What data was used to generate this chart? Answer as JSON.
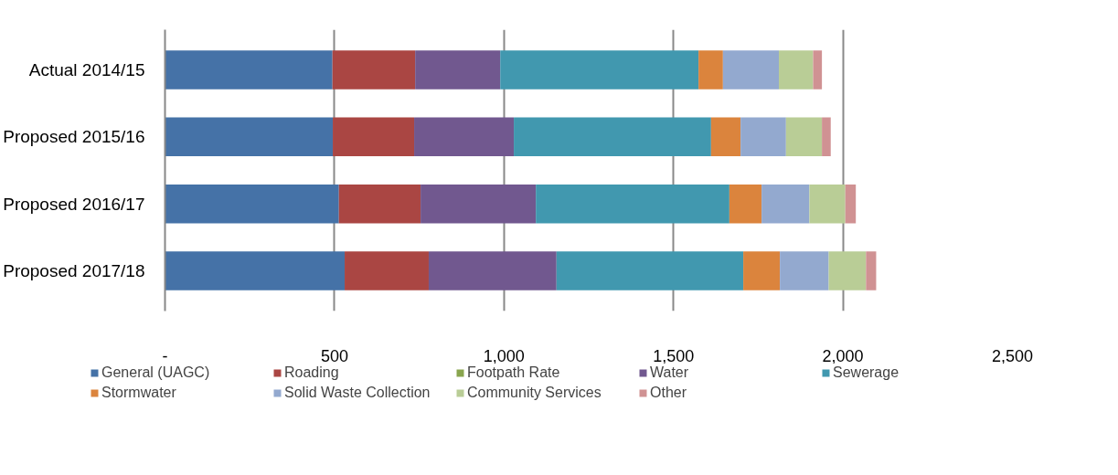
{
  "chart_data": {
    "type": "bar",
    "orientation": "horizontal",
    "stacked": true,
    "categories": [
      "Actual 2014/15",
      "Proposed 2015/16",
      "Proposed 2016/17",
      "Proposed 2017/18"
    ],
    "series": [
      {
        "name": "General (UAGC)",
        "color": "#4572a7",
        "values": [
          494,
          495,
          513,
          530
        ]
      },
      {
        "name": "Roading",
        "color": "#aa4643",
        "values": [
          244,
          240,
          241,
          248
        ]
      },
      {
        "name": "Footpath Rate",
        "color": "#89a54e",
        "values": [
          0,
          0,
          0,
          0
        ]
      },
      {
        "name": "Water",
        "color": "#71588f",
        "values": [
          251,
          294,
          340,
          377
        ]
      },
      {
        "name": "Sewerage",
        "color": "#4198af",
        "values": [
          585,
          582,
          571,
          551
        ]
      },
      {
        "name": "Stormwater",
        "color": "#db843d",
        "values": [
          72,
          87,
          95,
          108
        ]
      },
      {
        "name": "Solid Waste Collection",
        "color": "#93a9cf",
        "values": [
          165,
          134,
          141,
          144
        ]
      },
      {
        "name": "Community Services",
        "color": "#b9cd96",
        "values": [
          101,
          106,
          106,
          110
        ]
      },
      {
        "name": "Other",
        "color": "#d09293",
        "values": [
          26,
          26,
          31,
          30
        ]
      }
    ],
    "xlim": [
      0,
      2500
    ],
    "xticks": [
      {
        "value": 0,
        "label": "-"
      },
      {
        "value": 500,
        "label": "500"
      },
      {
        "value": 1000,
        "label": "1,000"
      },
      {
        "value": 1500,
        "label": "1,500"
      },
      {
        "value": 2000,
        "label": "2,000"
      },
      {
        "value": 2500,
        "label": "2,500"
      }
    ],
    "grid": "x",
    "legend": "bottom"
  }
}
